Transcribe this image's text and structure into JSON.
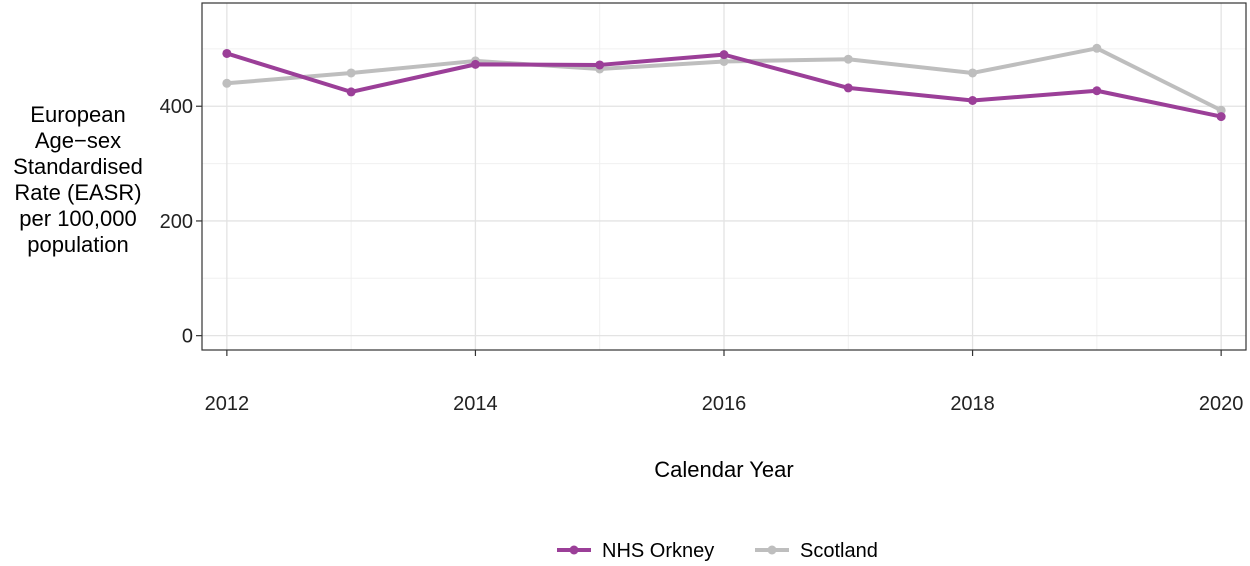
{
  "chart_data": {
    "type": "line",
    "title": "",
    "xlabel": "Calendar Year",
    "ylabel_lines": [
      "European",
      "Age−sex",
      "Standardised",
      "Rate (EASR)",
      "per 100,000",
      "population"
    ],
    "x": [
      2012,
      2013,
      2014,
      2015,
      2016,
      2017,
      2018,
      2019,
      2020
    ],
    "x_ticks": [
      "2012",
      "2014",
      "2016",
      "2018",
      "2020"
    ],
    "y_ticks": [
      "0",
      "200",
      "400"
    ],
    "xlim": [
      2011.8,
      2020.2
    ],
    "ylim": [
      -25,
      580
    ],
    "grid": true,
    "legend_position": "bottom",
    "series": [
      {
        "name": "NHS Orkney",
        "color": "#9b3f98",
        "values": [
          492,
          425,
          473,
          472,
          490,
          432,
          410,
          427,
          382
        ]
      },
      {
        "name": "Scotland",
        "color": "#bebebe",
        "values": [
          440,
          458,
          479,
          465,
          478,
          482,
          458,
          501,
          393
        ]
      }
    ]
  }
}
